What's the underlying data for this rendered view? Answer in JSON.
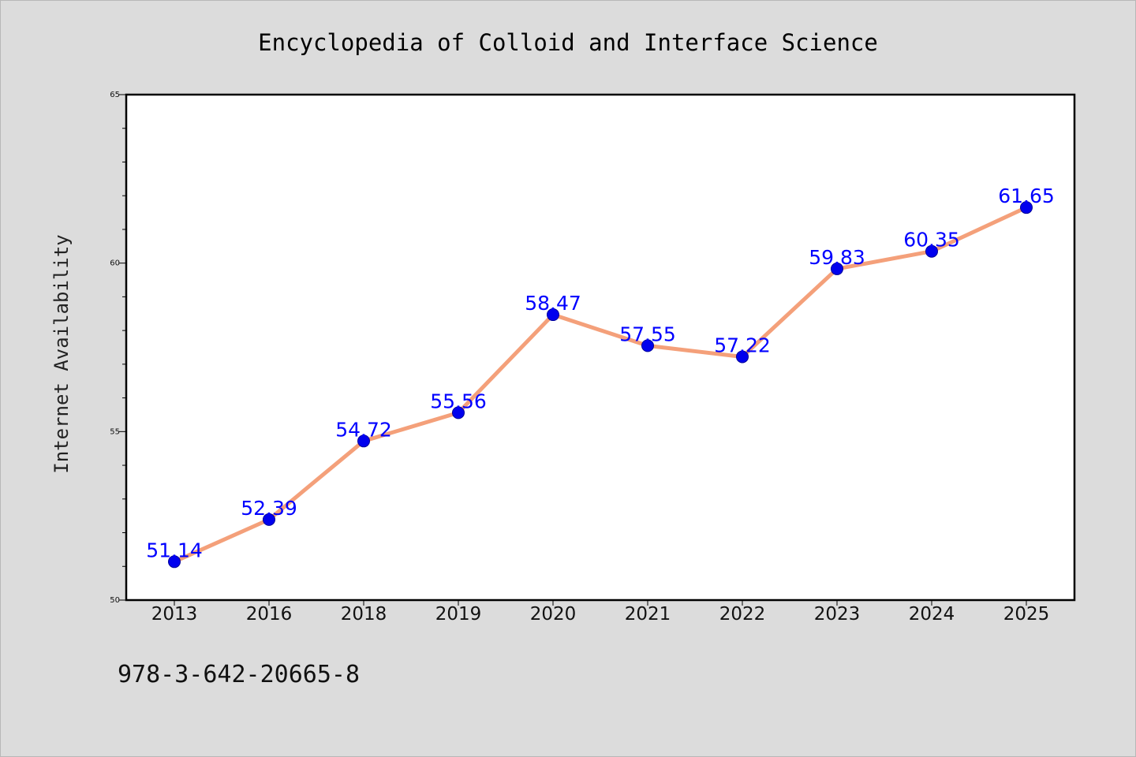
{
  "chart_data": {
    "type": "line",
    "title": "Encyclopedia of Colloid and Interface Science",
    "xlabel": "",
    "ylabel": "Internet Availability",
    "categories": [
      "2013",
      "2016",
      "2018",
      "2019",
      "2020",
      "2021",
      "2022",
      "2023",
      "2024",
      "2025"
    ],
    "series": [
      {
        "values": [
          51.14,
          52.39,
          54.72,
          55.56,
          58.47,
          57.55,
          57.22,
          59.83,
          60.35,
          61.65
        ],
        "data_labels": [
          "51.14",
          "52.39",
          "54.72",
          "55.56",
          "58.47",
          "57.55",
          "57.22",
          "59.83",
          "60.35",
          "61.65"
        ]
      }
    ],
    "ylim": [
      50,
      65
    ],
    "y_ticks": [
      "50",
      "55",
      "60",
      "65"
    ],
    "grid": false,
    "legend": "none",
    "colors": {
      "line": "#f4a07a",
      "marker": "#0000ee",
      "label": "#0000ff",
      "plot_bg": "#ffffff",
      "figure_bg": "#dcdcdc"
    }
  },
  "footer": {
    "isbn": "978-3-642-20665-8"
  }
}
